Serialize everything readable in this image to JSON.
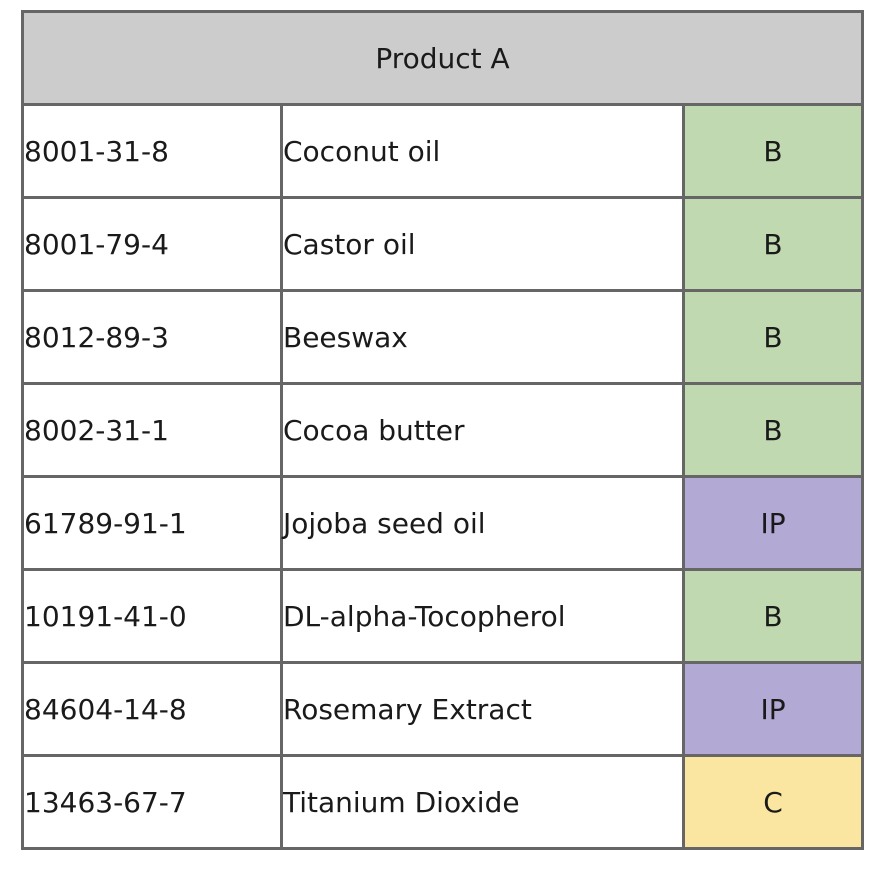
{
  "table": {
    "title": "Product A",
    "rows": [
      {
        "cas": "8001-31-8",
        "name": "Coconut oil",
        "class": "B",
        "color": "#c1d9b0"
      },
      {
        "cas": "8001-79-4",
        "name": "Castor oil",
        "class": "B",
        "color": "#c1d9b0"
      },
      {
        "cas": "8012-89-3",
        "name": "Beeswax",
        "class": "B",
        "color": "#c1d9b0"
      },
      {
        "cas": "8002-31-1",
        "name": "Cocoa butter",
        "class": "B",
        "color": "#c1d9b0"
      },
      {
        "cas": "61789-91-1",
        "name": "Jojoba seed oil",
        "class": "IP",
        "color": "#b3a9d5"
      },
      {
        "cas": "10191-41-0",
        "name": "DL-alpha-Tocopherol",
        "class": "B",
        "color": "#c1d9b0"
      },
      {
        "cas": "84604-14-8",
        "name": "Rosemary Extract",
        "class": "IP",
        "color": "#b3a9d5"
      },
      {
        "cas": "13463-67-7",
        "name": "Titanium Dioxide",
        "class": "C",
        "color": "#fae5a1"
      }
    ]
  }
}
